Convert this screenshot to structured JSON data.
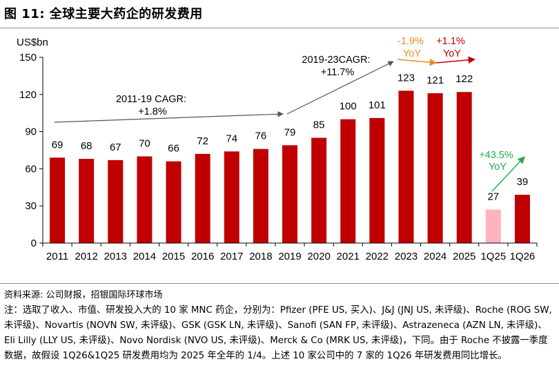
{
  "figure_title": "图 11: 全球主要大药企的研发费用",
  "source": "资料来源: 公司财报，招银国际环球市场",
  "note": "注：选取了收入、市值、研发投入大的 10 家 MNC 药企，分别为：Pfizer (PFE US, 买入)、J&J (JNJ US, 未评级)、Roche (ROG SW, 未评级)、Novartis (NOVN SW, 未评级)、GSK (GSK LN, 未评级)、Sanofi (SAN FP, 未评级)、Astrazeneca (AZN LN, 未评级)、Eli Lilly (LLY US, 未评级)、Novo Nordisk (NVO US, 未评级)、Merck & Co (MRK US, 未评级)，下同。由于 Roche 不披露一季度数据，故假设 1Q26&1Q25 研发费用均为 2025 年全年的 1/4。上述 10 家公司中的 7 家的 1Q26 年研发费用同比增长。",
  "chart_data": {
    "type": "bar",
    "ylabel": "US$bn",
    "ylim": [
      0,
      150
    ],
    "yticks": [
      0,
      30,
      60,
      90,
      120,
      150
    ],
    "grid": false,
    "categories": [
      "2011",
      "2012",
      "2013",
      "2014",
      "2015",
      "2016",
      "2017",
      "2018",
      "2019",
      "2020",
      "2021",
      "2022",
      "2023",
      "2024",
      "2025",
      "1Q25",
      "1Q26"
    ],
    "values": [
      69,
      68,
      67,
      70,
      66,
      72,
      74,
      76,
      79,
      85,
      100,
      101,
      123,
      121,
      122,
      27,
      39
    ],
    "bar_colors": [
      "#c00000",
      "#c00000",
      "#c00000",
      "#c00000",
      "#c00000",
      "#c00000",
      "#c00000",
      "#c00000",
      "#c00000",
      "#c00000",
      "#c00000",
      "#c00000",
      "#c00000",
      "#c00000",
      "#c00000",
      "#ffb3bc",
      "#c00000"
    ],
    "annotations": [
      {
        "text": [
          "2011-19 CAGR:",
          "+1.8%"
        ],
        "color": "#000000"
      },
      {
        "text": [
          "2019-23CAGR:",
          "+11.7%"
        ],
        "color": "#000000"
      },
      {
        "text": [
          "-1.9%",
          "YoY"
        ],
        "color": "#ee8a25"
      },
      {
        "text": [
          "+1.1%",
          "YoY"
        ],
        "color": "#c00000"
      },
      {
        "text": [
          "+43.5%",
          "YoY"
        ],
        "color": "#1fae4b"
      }
    ]
  }
}
